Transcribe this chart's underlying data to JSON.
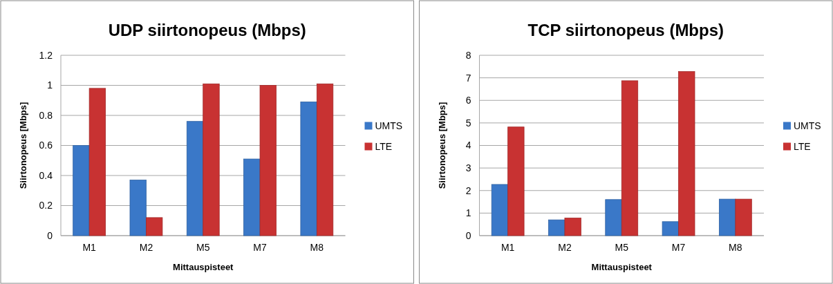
{
  "chart_data": [
    {
      "type": "bar",
      "title": "UDP siirtonopeus (Mbps)",
      "xlabel": "Mittauspisteet",
      "ylabel": "Siirtonopeus [Mbps]",
      "categories": [
        "M1",
        "M2",
        "M5",
        "M7",
        "M8"
      ],
      "series": [
        {
          "name": "UMTS",
          "color": "#3a78c8",
          "values": [
            0.6,
            0.37,
            0.76,
            0.51,
            0.89
          ]
        },
        {
          "name": "LTE",
          "color": "#c83232",
          "values": [
            0.98,
            0.12,
            1.01,
            1.0,
            1.01
          ]
        }
      ],
      "ylim": [
        0,
        1.2
      ],
      "yticks": [
        0,
        0.2,
        0.4,
        0.6,
        0.8,
        1,
        1.2
      ],
      "grid": "y",
      "legend": "right"
    },
    {
      "type": "bar",
      "title": "TCP siirtonopeus (Mbps)",
      "xlabel": "Mittauspisteet",
      "ylabel": "Siirtonopeus [Mbps]",
      "categories": [
        "M1",
        "M2",
        "M5",
        "M7",
        "M8"
      ],
      "series": [
        {
          "name": "UMTS",
          "color": "#3a78c8",
          "values": [
            2.27,
            0.7,
            1.6,
            0.62,
            1.62
          ]
        },
        {
          "name": "LTE",
          "color": "#c83232",
          "values": [
            4.82,
            0.78,
            6.87,
            7.28,
            1.62
          ]
        }
      ],
      "ylim": [
        0,
        8
      ],
      "yticks": [
        0,
        1,
        2,
        3,
        4,
        5,
        6,
        7,
        8
      ],
      "grid": "y",
      "legend": "right"
    }
  ]
}
